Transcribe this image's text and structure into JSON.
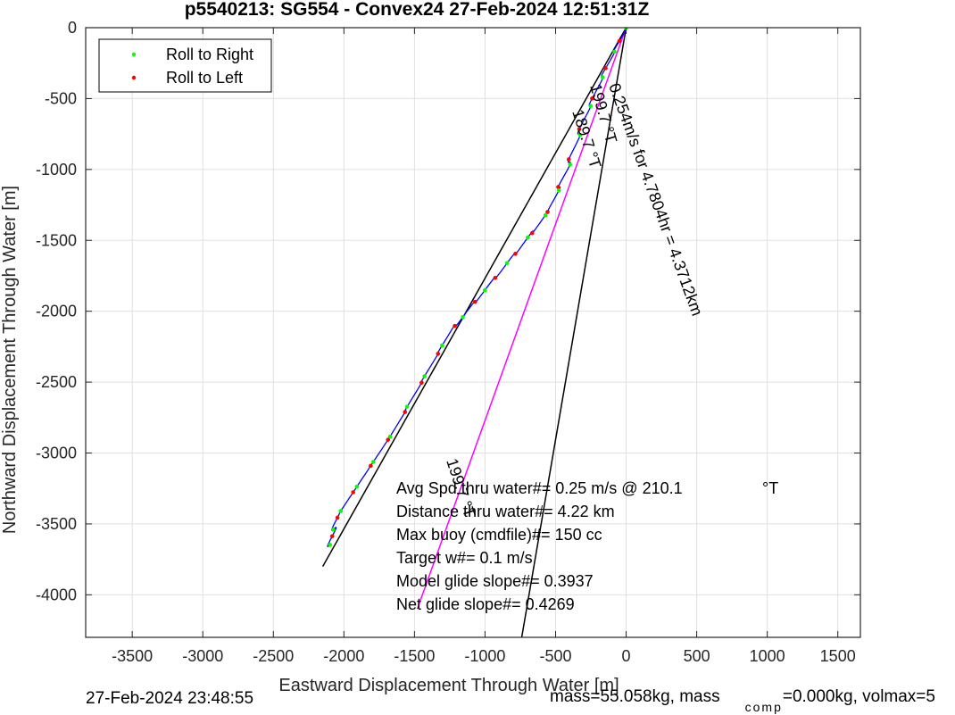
{
  "chart_data": {
    "type": "line",
    "title": "p5540213: SG554 - Convex24 27-Feb-2024 12:51:31Z",
    "xlabel": "Eastward Displacement Through Water [m]",
    "ylabel": "Northward Displacement Through Water [m]",
    "xlim": [
      -3830,
      1660
    ],
    "ylim": [
      -4300,
      0
    ],
    "xticks": [
      -3500,
      -3000,
      -2500,
      -2000,
      -1500,
      -1000,
      -500,
      0,
      500,
      1000,
      1500
    ],
    "yticks": [
      0,
      -500,
      -1000,
      -1500,
      -2000,
      -2500,
      -3000,
      -3500,
      -4000
    ],
    "grid": true,
    "legend_position": "top-left",
    "legend": [
      {
        "label": "Roll to Right",
        "color": "#00ff00"
      },
      {
        "label": "Roll to Left",
        "color": "#ff0000"
      }
    ],
    "track": {
      "color": "#0000ff",
      "points": [
        [
          0,
          0
        ],
        [
          -150,
          -300
        ],
        [
          -300,
          -650
        ],
        [
          -420,
          -1000
        ],
        [
          -550,
          -1300
        ],
        [
          -750,
          -1550
        ],
        [
          -1000,
          -1850
        ],
        [
          -1250,
          -2150
        ],
        [
          -1450,
          -2500
        ],
        [
          -1650,
          -2850
        ],
        [
          -1850,
          -3150
        ],
        [
          -2050,
          -3450
        ],
        [
          -2100,
          -3650
        ]
      ]
    },
    "lines": [
      {
        "name": "heading_1",
        "color": "#000000",
        "points": [
          [
            0,
            0
          ],
          [
            -2150,
            -3800
          ]
        ]
      },
      {
        "name": "heading_2",
        "color": "#000000",
        "points": [
          [
            0,
            0
          ],
          [
            -740,
            -4300
          ]
        ]
      },
      {
        "name": "net_displacement",
        "color": "#ff00ff",
        "points": [
          [
            0,
            0
          ],
          [
            -1480,
            -4100
          ]
        ]
      }
    ],
    "line_labels": {
      "heading_1": "199.7 °T",
      "net_displacement": "0.254m/s for 4.7804hr = 4.3712km",
      "heading_2": "189.7 °T",
      "lower_heading": "199.7 °T"
    },
    "annotations": [
      "Avg Spd thru water#= 0.25 m/s @ 210.1",
      "°T",
      "Distance thru water#= 4.22 km",
      "Max buoy (cmdfile)#= 150 cc",
      "Target w#= 0.1 m/s",
      "Model glide slope#= 0.3937",
      "Net glide slope#= 0.4269"
    ]
  },
  "footer": {
    "timestamp": "27-Feb-2024 23:48:55",
    "mass_text": "mass=55.058kg, mass",
    "comp_sub": "comp",
    "mass_tail": "=0.000kg, volmax=5"
  }
}
